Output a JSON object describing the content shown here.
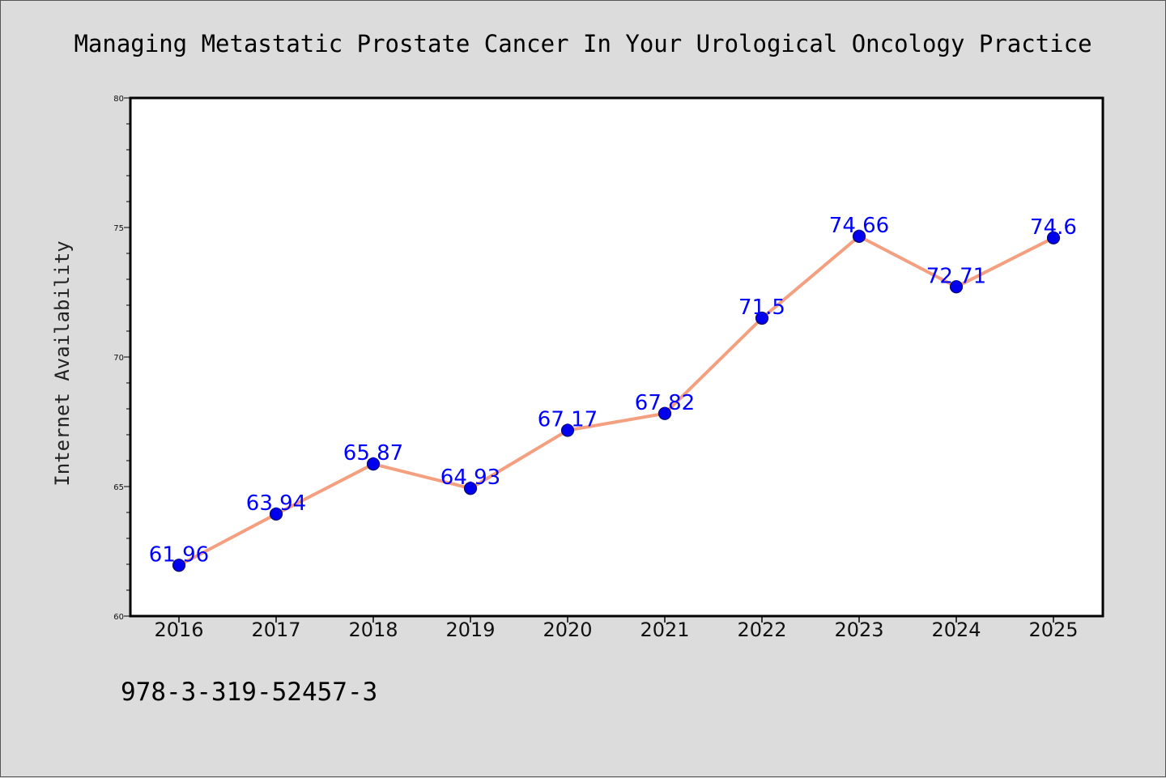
{
  "colors": {
    "background": "#dcdcdc",
    "plot_background": "#ffffff",
    "line": "#f4a080",
    "marker_fill": "#0000ee",
    "marker_edge": "#0a0a6a",
    "data_label": "#0000ff"
  },
  "chart_data": {
    "type": "line",
    "title": "Managing Metastatic Prostate Cancer In Your Urological Oncology Practice",
    "xlabel": "",
    "ylabel": "Internet Availability",
    "categories": [
      "2016",
      "2017",
      "2018",
      "2019",
      "2020",
      "2021",
      "2022",
      "2023",
      "2024",
      "2025"
    ],
    "series": [
      {
        "values": [
          61.96,
          63.94,
          65.87,
          64.93,
          67.17,
          67.82,
          71.5,
          74.66,
          72.71,
          74.6
        ],
        "labels": [
          "61.96",
          "63.94",
          "65.87",
          "64.93",
          "67.17",
          "67.82",
          "71.5",
          "74.66",
          "72.71",
          "74.6"
        ]
      }
    ],
    "ylim": [
      60,
      80
    ],
    "yticks": [
      "60",
      "65",
      "70",
      "75",
      "80"
    ],
    "grid": false,
    "legend": "none",
    "marker": "circle"
  },
  "footer": {
    "isbn": "978-3-319-52457-3"
  }
}
